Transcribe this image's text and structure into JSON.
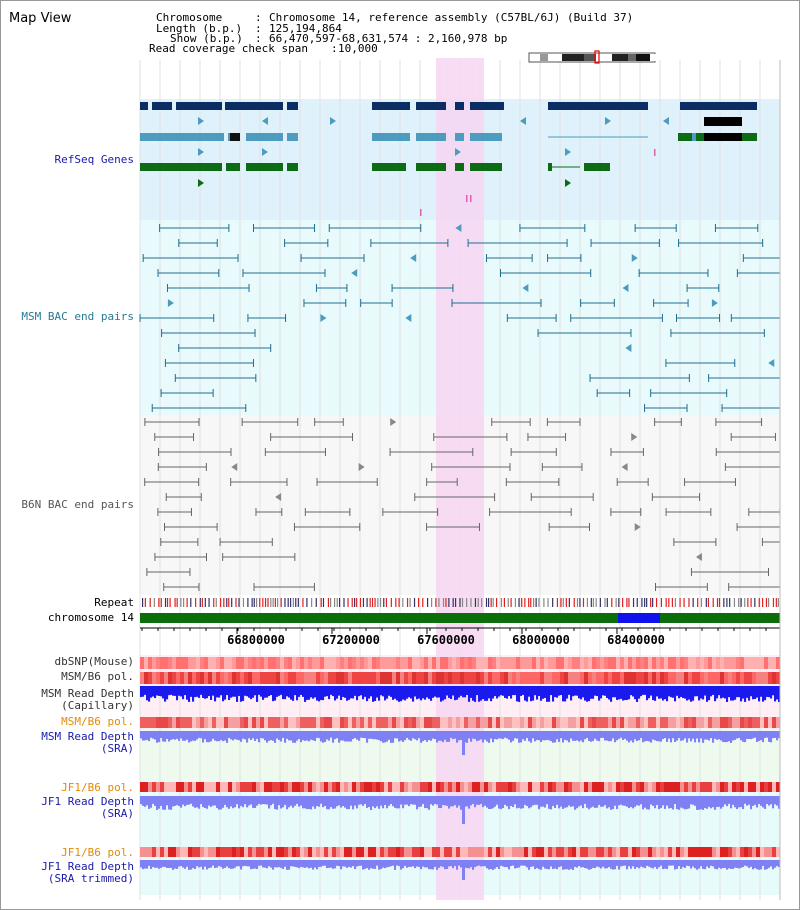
{
  "view_title": "Map View",
  "header": {
    "chromosome_key": "Chromosome",
    "chromosome_value": "Chromosome 14, reference assembly (C57BL/6J) (Build 37)",
    "length_key": "Length (b.p.)",
    "length_value": "125,194,864",
    "show_key": "Show (b.p.)",
    "show_value": "66,470,597-68,631,574 : 2,160,978 bp",
    "span_key": "Read coverage check span",
    "span_value": "10,000"
  },
  "tracks": {
    "refseq": "RefSeq Genes",
    "msm_bac": "MSM BAC end pairs",
    "b6n_bac": "B6N BAC end pairs",
    "repeat": "Repeat",
    "chromosome": "chromosome 14",
    "dbsnp": "dbSNP(Mouse)",
    "msm_b6_pol_1": "MSM/B6 pol.",
    "msm_depth_cap_1": "MSM Read Depth",
    "msm_depth_cap_2": "(Capillary)",
    "msm_b6_pol_2": "MSM/B6 pol.",
    "msm_depth_sra_1": "MSM Read Depth",
    "msm_depth_sra_2": "(SRA)",
    "jf1_b6_pol_1": "JF1/B6 pol.",
    "jf1_depth_sra_1": "JF1 Read Depth",
    "jf1_depth_sra_2": "(SRA)",
    "jf1_b6_pol_2": "JF1/B6 pol.",
    "jf1_depth_trim_1": "JF1 Read Depth",
    "jf1_depth_trim_2": "(SRA trimmed)"
  },
  "axis_ticks": [
    "66800000",
    "67200000",
    "67600000",
    "68000000",
    "68400000"
  ],
  "colors": {
    "refseq_bg": "#dff2fb",
    "msm_bg": "#e8fafb",
    "b6n_bg": "#f7f7f7",
    "highlight": "#f7d6f2",
    "gene_dark": "#0b2d63",
    "gene_light": "#4d9bbf",
    "gene_green": "#0d6b16",
    "msm_line": "#1f6e8f",
    "b6n_line": "#666666",
    "chrom_green": "#0b6e0b",
    "chrom_blue": "#1111ee",
    "snp_red": "#ff8585",
    "pol_red": "#f26363",
    "depth_blue": "#1a1aee",
    "depth_lavender": "#8080f5",
    "label_blue": "#1a1aa8",
    "label_teal": "#267a94",
    "label_orange": "#e68a00"
  }
}
